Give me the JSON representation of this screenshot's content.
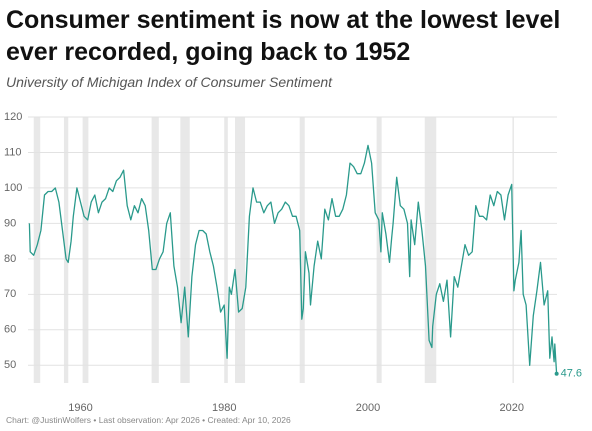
{
  "chart_data": {
    "type": "line",
    "title": "Consumer sentiment is now at the lowest level ever recorded, going back to 1952",
    "subtitle": "University of Michigan Index of Consumer Sentiment",
    "source": "Chart: @JustinWolfers • Last observation: Apr 2026 • Created: Apr 10, 2026",
    "xlim": [
      1952.7,
      2026.3
    ],
    "ylim": [
      45,
      120
    ],
    "xticks": [
      1960,
      1980,
      2000,
      2020
    ],
    "yticks": [
      50,
      60,
      70,
      80,
      90,
      100,
      110,
      120
    ],
    "grid": true,
    "recessions": [
      [
        1953.5,
        1954.4
      ],
      [
        1957.7,
        1958.3
      ],
      [
        1960.3,
        1961.1
      ],
      [
        1969.9,
        1970.9
      ],
      [
        1973.9,
        1975.2
      ],
      [
        1980.0,
        1980.5
      ],
      [
        1981.5,
        1982.9
      ],
      [
        1990.5,
        1991.2
      ],
      [
        2001.2,
        2001.9
      ],
      [
        2007.9,
        2009.5
      ],
      [
        2020.1,
        2020.3
      ]
    ],
    "x": [
      1952.9,
      1953,
      1953.5,
      1954,
      1954.5,
      1955,
      1955.5,
      1956,
      1956.5,
      1957,
      1957.5,
      1958,
      1958.3,
      1958.7,
      1959,
      1959.5,
      1960,
      1960.5,
      1961,
      1961.5,
      1962,
      1962.5,
      1963,
      1963.5,
      1964,
      1964.5,
      1965,
      1965.5,
      1966,
      1966.5,
      1967,
      1967.5,
      1968,
      1968.5,
      1969,
      1969.5,
      1970,
      1970.5,
      1971,
      1971.5,
      1972,
      1972.5,
      1973,
      1973.5,
      1974,
      1974.5,
      1975,
      1975.5,
      1976,
      1976.5,
      1977,
      1977.5,
      1978,
      1978.5,
      1979,
      1979.5,
      1980,
      1980.4,
      1980.7,
      1981,
      1981.5,
      1982,
      1982.5,
      1983,
      1983.5,
      1984,
      1984.5,
      1985,
      1985.5,
      1986,
      1986.5,
      1987,
      1987.5,
      1988,
      1988.5,
      1989,
      1989.5,
      1990,
      1990.5,
      1990.8,
      1991,
      1991.3,
      1991.8,
      1992,
      1992.5,
      1993,
      1993.5,
      1994,
      1994.5,
      1995,
      1995.5,
      1996,
      1996.5,
      1997,
      1997.5,
      1998,
      1998.5,
      1999,
      1999.5,
      2000,
      2000.5,
      2001,
      2001.5,
      2001.8,
      2002,
      2002.5,
      2003,
      2003.3,
      2003.5,
      2004,
      2004.5,
      2005,
      2005.5,
      2005.8,
      2006,
      2006.5,
      2007,
      2007.5,
      2008,
      2008.5,
      2008.9,
      2009,
      2009.5,
      2010,
      2010.5,
      2011,
      2011.5,
      2012,
      2012.5,
      2013,
      2013.5,
      2014,
      2014.5,
      2015,
      2015.5,
      2016,
      2016.5,
      2017,
      2017.5,
      2018,
      2018.5,
      2019,
      2019.5,
      2020,
      2020.3,
      2020.5,
      2021,
      2021.3,
      2021.6,
      2022,
      2022.5,
      2023,
      2023.5,
      2024,
      2024.5,
      2025,
      2025.3,
      2025.6,
      2025.9,
      2026,
      2026.25
    ],
    "series": [
      {
        "name": "Consumer Sentiment",
        "color": "#2a9a8c",
        "values": [
          90,
          82,
          81,
          84,
          88,
          98,
          99,
          99,
          100,
          96,
          88,
          80,
          79,
          85,
          92,
          100,
          96,
          92,
          91,
          96,
          98,
          93,
          96,
          97,
          100,
          99,
          102,
          103,
          105,
          95,
          91,
          95,
          93,
          97,
          95,
          88,
          77,
          77,
          80,
          82,
          90,
          93,
          78,
          72,
          62,
          72,
          58,
          75,
          84,
          88,
          88,
          87,
          82,
          78,
          72,
          65,
          67,
          52,
          72,
          70,
          77,
          65,
          66,
          72,
          92,
          100,
          96,
          96,
          93,
          95,
          96,
          90,
          93,
          94,
          96,
          95,
          92,
          92,
          88,
          63,
          66,
          82,
          76,
          67,
          78,
          85,
          80,
          94,
          91,
          97,
          92,
          92,
          94,
          98,
          107,
          106,
          104,
          104,
          107,
          112,
          107,
          93,
          91,
          82,
          93,
          87,
          79,
          86,
          90,
          103,
          95,
          94,
          90,
          75,
          91,
          84,
          96,
          88,
          78,
          57,
          55,
          61,
          70,
          73,
          68,
          74,
          58,
          75,
          72,
          78,
          84,
          81,
          82,
          95,
          92,
          92,
          91,
          98,
          95,
          99,
          98,
          91,
          98,
          101,
          71,
          74,
          79,
          88,
          70,
          67,
          50,
          64,
          71,
          79,
          67,
          71,
          52,
          58,
          51,
          56,
          47.6
        ]
      }
    ]
  }
}
